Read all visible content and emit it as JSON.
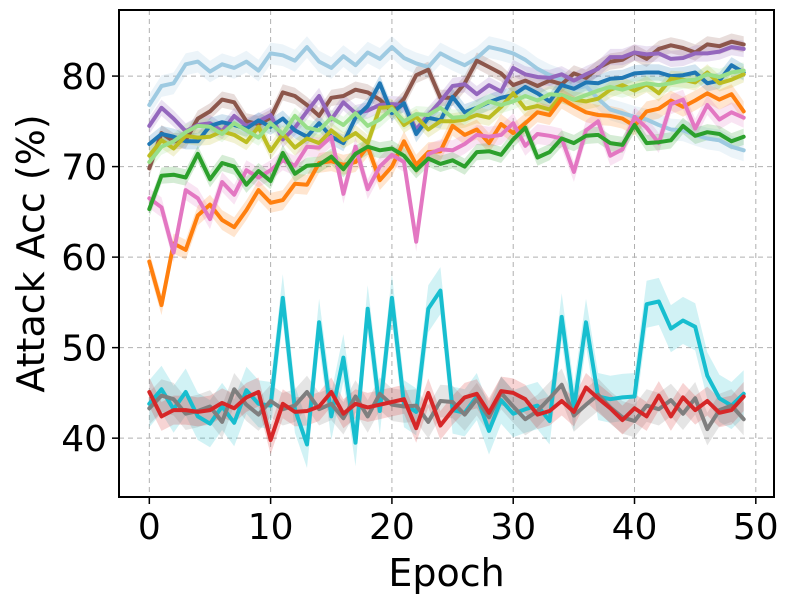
{
  "chart_data": {
    "type": "line",
    "xlabel": "Epoch",
    "ylabel": "Attack Acc (%)",
    "xlim": [
      -2.5,
      51.5
    ],
    "ylim": [
      33.5,
      87.3
    ],
    "xticks": [
      0,
      10,
      20,
      30,
      40,
      50
    ],
    "yticks": [
      40,
      50,
      60,
      70,
      80
    ],
    "grid": true,
    "x": [
      0,
      1,
      2,
      3,
      4,
      5,
      6,
      7,
      8,
      9,
      10,
      11,
      12,
      13,
      14,
      15,
      16,
      17,
      18,
      19,
      20,
      21,
      22,
      23,
      24,
      25,
      26,
      27,
      28,
      29,
      30,
      31,
      32,
      33,
      34,
      35,
      36,
      37,
      38,
      39,
      40,
      41,
      42,
      43,
      44,
      45,
      46,
      47,
      48,
      49
    ],
    "series": [
      {
        "name": "light blue",
        "color": "#9ecae1",
        "band": 1.2,
        "values": [
          76.8,
          78.9,
          79.2,
          81.3,
          81.6,
          80.5,
          81.3,
          80.9,
          81.6,
          80.6,
          82.5,
          82.3,
          81.7,
          83.2,
          81.6,
          80.9,
          82.2,
          81.2,
          82.6,
          81.9,
          83.2,
          82.0,
          81.4,
          81.0,
          82.5,
          81.8,
          81.2,
          82.0,
          83.2,
          82.9,
          82.5,
          81.8,
          80.8,
          80.1,
          79.6,
          78.6,
          78.9,
          77.5,
          76.3,
          75.9,
          75.5,
          75.2,
          74.6,
          74.1,
          74.0,
          73.5,
          73.1,
          72.9,
          72.2,
          71.8
        ]
      },
      {
        "name": "brown",
        "color": "#8c564b",
        "band": 0.9,
        "values": [
          69.8,
          73.7,
          72.8,
          72.9,
          75.3,
          76.1,
          77.4,
          77.1,
          75.0,
          74.7,
          75.4,
          78.2,
          77.8,
          76.8,
          75.6,
          77.6,
          77.8,
          78.5,
          78.2,
          77.4,
          76.1,
          77.5,
          80.1,
          80.7,
          77.6,
          77.6,
          79.2,
          81.7,
          81.0,
          80.3,
          79.0,
          79.5,
          78.9,
          79.5,
          79.1,
          80.3,
          79.8,
          80.9,
          81.6,
          81.8,
          82.6,
          81.9,
          83.0,
          83.4,
          83.1,
          82.6,
          83.5,
          83.3,
          83.8,
          83.5
        ]
      },
      {
        "name": "purple",
        "color": "#9467bd",
        "band": 0.9,
        "values": [
          74.5,
          76.5,
          75.3,
          73.9,
          74.6,
          74.8,
          73.9,
          75.6,
          74.5,
          75.0,
          75.7,
          73.0,
          74.3,
          76.1,
          77.8,
          75.2,
          77.1,
          75.9,
          76.2,
          76.8,
          76.9,
          76.8,
          74.1,
          75.7,
          77.2,
          78.9,
          79.1,
          78.0,
          79.0,
          78.3,
          80.9,
          80.2,
          79.9,
          79.8,
          80.2,
          79.5,
          80.2,
          80.8,
          82.1,
          82.1,
          82.6,
          82.4,
          82.5,
          81.9,
          82.0,
          82.5,
          82.5,
          82.7,
          83.2,
          83.0
        ]
      },
      {
        "name": "blue",
        "color": "#1f77b4",
        "band": 0.9,
        "values": [
          72.5,
          73.6,
          73.3,
          72.8,
          72.8,
          74.5,
          74.9,
          74.6,
          74.2,
          75.1,
          74.4,
          75.3,
          74.0,
          73.3,
          74.8,
          73.3,
          72.6,
          75.4,
          76.7,
          79.2,
          75.9,
          77.0,
          73.6,
          75.4,
          75.1,
          77.7,
          76.0,
          76.5,
          77.1,
          77.6,
          77.9,
          78.8,
          78.1,
          77.2,
          79.0,
          78.6,
          79.3,
          79.2,
          79.7,
          79.8,
          80.3,
          80.4,
          80.4,
          80.0,
          80.1,
          80.4,
          79.2,
          79.5,
          81.2,
          80.4
        ]
      },
      {
        "name": "yellow-green",
        "color": "#bcbd22",
        "band": 0.9,
        "values": [
          71.2,
          72.9,
          72.0,
          73.4,
          73.2,
          73.3,
          73.9,
          73.5,
          72.7,
          74.4,
          71.7,
          73.6,
          72.1,
          73.1,
          72.6,
          74.0,
          72.9,
          73.7,
          72.6,
          76.5,
          76.6,
          74.6,
          75.5,
          74.1,
          75.0,
          75.0,
          75.2,
          75.7,
          75.4,
          76.6,
          78.1,
          76.4,
          76.7,
          76.3,
          77.9,
          77.4,
          77.2,
          77.5,
          78.5,
          79.0,
          78.4,
          79.1,
          78.1,
          79.7,
          79.6,
          79.3,
          80.4,
          79.2,
          79.6,
          80.2
        ]
      },
      {
        "name": "light green",
        "color": "#98df8a",
        "band": 0.9,
        "values": [
          70.5,
          72.2,
          72.8,
          73.8,
          74.5,
          74.4,
          73.6,
          74.8,
          74.0,
          73.2,
          74.8,
          73.6,
          75.6,
          74.3,
          74.0,
          75.4,
          74.6,
          75.9,
          74.5,
          75.2,
          76.4,
          75.0,
          75.8,
          75.7,
          76.5,
          75.4,
          75.5,
          76.5,
          77.2,
          76.8,
          77.2,
          77.8,
          77.3,
          78.0,
          77.9,
          77.4,
          77.9,
          78.4,
          78.8,
          78.5,
          78.9,
          79.2,
          79.0,
          79.2,
          79.5,
          79.6,
          80.2,
          79.9,
          80.4,
          80.6
        ]
      },
      {
        "name": "orange",
        "color": "#ff7f0e",
        "band": 1.1,
        "values": [
          59.5,
          54.7,
          61.5,
          60.8,
          64.6,
          65.8,
          64.1,
          63.3,
          65.2,
          67.4,
          66.0,
          66.3,
          68.1,
          68.0,
          70.4,
          70.6,
          70.2,
          70.5,
          72.2,
          68.5,
          70.0,
          72.8,
          70.2,
          71.6,
          71.7,
          74.5,
          73.5,
          74.1,
          72.6,
          74.7,
          73.7,
          74.8,
          76.0,
          75.7,
          77.5,
          76.7,
          76.0,
          75.7,
          75.6,
          75.3,
          74.5,
          76.1,
          76.4,
          77.3,
          76.6,
          77.3,
          78.1,
          77.4,
          78.0,
          76.1
        ]
      },
      {
        "name": "pink",
        "color": "#e377c2",
        "band": 1.1,
        "values": [
          66.5,
          65.5,
          60.5,
          67.4,
          66.5,
          64.2,
          68.3,
          66.9,
          69.6,
          68.8,
          69.6,
          70.7,
          70.1,
          72.2,
          72.1,
          73.3,
          67.0,
          72.2,
          67.5,
          70.0,
          71.3,
          70.5,
          61.7,
          71.4,
          71.9,
          71.8,
          72.5,
          73.5,
          73.3,
          73.5,
          74.8,
          72.3,
          73.6,
          73.4,
          73.1,
          69.4,
          74.0,
          75.0,
          71.2,
          71.9,
          75.5,
          74.3,
          72.6,
          76.9,
          77.4,
          74.2,
          76.8,
          75.2,
          76.0,
          75.4
        ]
      },
      {
        "name": "green",
        "color": "#2ca02c",
        "band": 0.9,
        "values": [
          65.3,
          69.0,
          69.1,
          68.8,
          71.4,
          68.6,
          70.4,
          70.0,
          68.0,
          69.5,
          68.4,
          71.5,
          69.2,
          70.1,
          70.2,
          71.1,
          69.7,
          71.4,
          72.2,
          71.8,
          72.0,
          71.2,
          69.6,
          70.9,
          70.3,
          70.7,
          70.0,
          71.6,
          71.7,
          71.3,
          73.0,
          74.3,
          71.0,
          71.6,
          73.1,
          72.6,
          73.4,
          73.5,
          72.6,
          72.4,
          74.6,
          72.6,
          72.7,
          72.9,
          74.5,
          73.4,
          73.8,
          73.6,
          72.8,
          73.3
        ]
      },
      {
        "name": "cyan",
        "color": "#17becf",
        "band": 2.6,
        "values": [
          43.8,
          45.4,
          43.2,
          45.1,
          42.4,
          41.6,
          43.5,
          41.7,
          45.3,
          43.8,
          43.6,
          55.5,
          43.2,
          39.3,
          52.8,
          42.4,
          48.9,
          39.5,
          54.3,
          43.0,
          55.5,
          43.8,
          42.9,
          54.3,
          56.3,
          43.1,
          42.8,
          44.6,
          40.8,
          44.2,
          42.7,
          43.2,
          43.6,
          41.9,
          53.4,
          43.3,
          52.8,
          44.6,
          44.3,
          44.5,
          44.6,
          54.8,
          55.1,
          52.1,
          53.0,
          52.3,
          46.9,
          44.4,
          43.6,
          44.9
        ]
      },
      {
        "name": "gray",
        "color": "#7f7f7f",
        "band": 1.8,
        "values": [
          43.3,
          44.7,
          44.3,
          42.7,
          43.0,
          43.5,
          41.8,
          45.4,
          43.7,
          42.6,
          44.1,
          43.2,
          43.6,
          45.1,
          43.2,
          43.8,
          42.2,
          44.6,
          42.4,
          44.9,
          43.7,
          43.5,
          43.6,
          41.8,
          44.1,
          44.0,
          42.6,
          44.3,
          42.3,
          45.0,
          43.5,
          42.1,
          43.0,
          44.4,
          45.9,
          42.5,
          43.7,
          44.8,
          43.4,
          42.3,
          41.9,
          43.6,
          43.2,
          44.2,
          42.7,
          44.4,
          41.0,
          43.1,
          43.6,
          42.1
        ]
      },
      {
        "name": "red",
        "color": "#d62728",
        "band": 1.6,
        "values": [
          45.1,
          42.4,
          43.1,
          43.1,
          42.9,
          43.1,
          43.9,
          43.3,
          44.5,
          45.1,
          39.8,
          43.8,
          42.9,
          43.0,
          43.5,
          45.1,
          42.7,
          43.8,
          43.4,
          43.7,
          44.0,
          44.3,
          41.1,
          45.0,
          41.4,
          43.1,
          44.5,
          44.9,
          42.8,
          45.2,
          45.0,
          44.3,
          42.6,
          43.0,
          44.1,
          42.9,
          45.6,
          44.4,
          43.3,
          42.0,
          43.3,
          42.4,
          44.7,
          42.4,
          44.5,
          43.1,
          44.1,
          42.8,
          43.1,
          44.6
        ]
      }
    ]
  }
}
